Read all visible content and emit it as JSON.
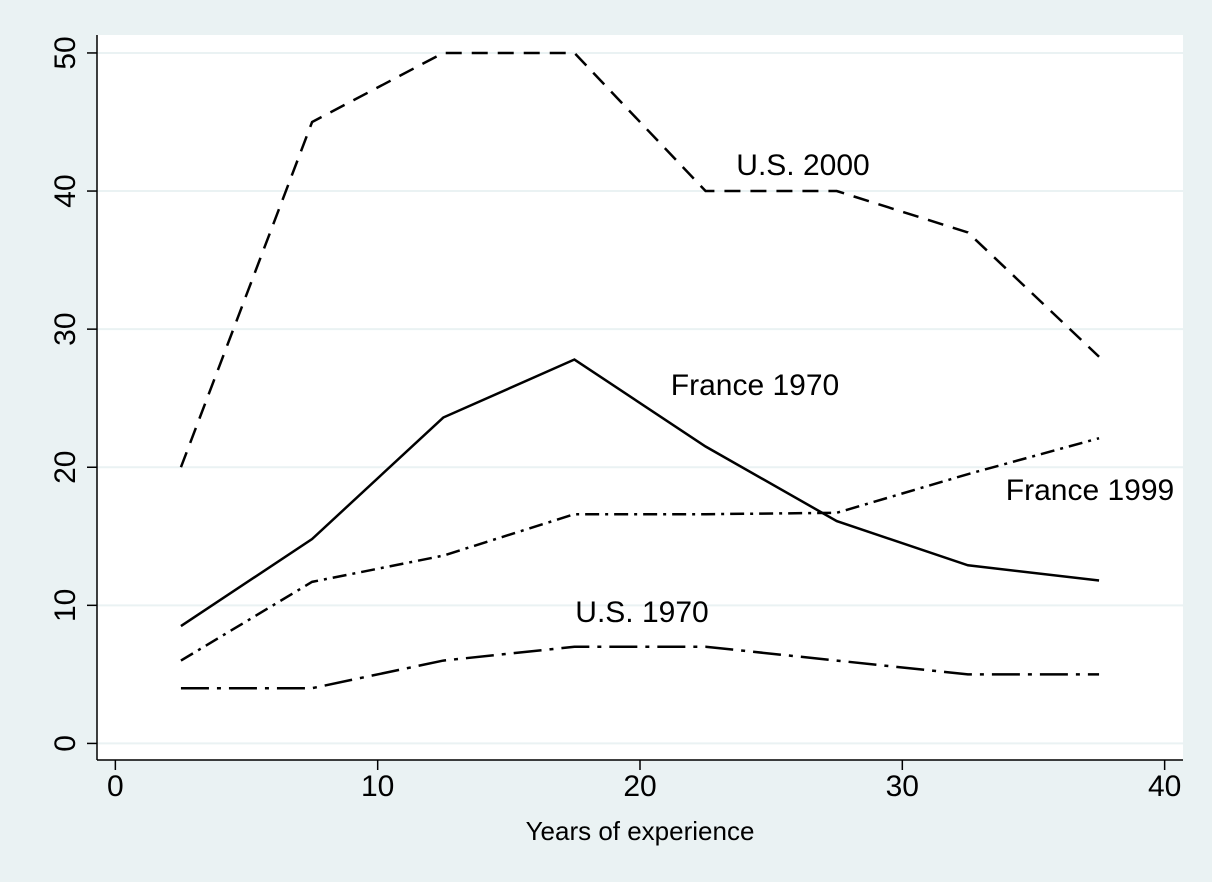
{
  "chart_data": {
    "type": "line",
    "x_label": "Years of experience",
    "x": [
      2.5,
      7.5,
      12.5,
      17.5,
      22.5,
      27.5,
      32.5,
      37.5
    ],
    "series": [
      {
        "name": "U.S. 2000",
        "color": "#000000",
        "dash": "16,10",
        "values": [
          20,
          45,
          50,
          50,
          40,
          40,
          37,
          28
        ]
      },
      {
        "name": "France 1970",
        "color": "#000000",
        "dash": "none",
        "values": [
          8.5,
          14.8,
          23.6,
          27.8,
          21.5,
          16.1,
          12.9,
          11.8
        ]
      },
      {
        "name": "France 1999",
        "color": "#000000",
        "dash": "14,6,3,6",
        "values": [
          6,
          11.7,
          13.6,
          16.6,
          16.6,
          16.7,
          19.5,
          22.1
        ]
      },
      {
        "name": "U.S. 1970",
        "color": "#000000",
        "dash": "28,8,4,8",
        "values": [
          4,
          4,
          6,
          7,
          7,
          6,
          5,
          5
        ]
      }
    ],
    "xlim": [
      -0.7,
      40.7
    ],
    "ylim": [
      -1.2,
      51.3
    ],
    "xticks": [
      0,
      10,
      20,
      30,
      40
    ],
    "yticks": [
      0,
      10,
      20,
      30,
      40,
      50
    ],
    "grid": true
  }
}
